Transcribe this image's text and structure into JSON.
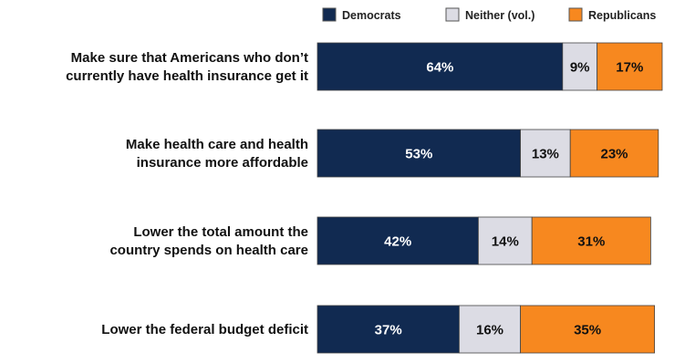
{
  "chart_data": {
    "type": "bar",
    "orientation": "horizontal",
    "stacked": true,
    "title": "",
    "xlabel": "",
    "ylabel": "",
    "xlim": [
      0,
      100
    ],
    "grid": false,
    "legend_position": "top",
    "categories": [
      [
        "Make sure that Americans who don’t",
        "currently have health insurance get it"
      ],
      [
        "Make health care and health",
        "insurance more affordable"
      ],
      [
        "Lower the total amount the",
        "country spends on health care"
      ],
      [
        "Lower the federal budget deficit"
      ]
    ],
    "series": [
      {
        "name": "Democrats",
        "color": "#112a51",
        "label_color": "#ffffff",
        "values": [
          64,
          53,
          42,
          37
        ],
        "labels": [
          "64%",
          "53%",
          "42%",
          "37%"
        ]
      },
      {
        "name": "Neither (vol.)",
        "color": "#dcdce4",
        "label_color": "#111111",
        "values": [
          9,
          13,
          14,
          16
        ],
        "labels": [
          "9%",
          "13%",
          "14%",
          "16%"
        ]
      },
      {
        "name": "Republicans",
        "color": "#f7881f",
        "label_color": "#111111",
        "values": [
          17,
          23,
          31,
          35
        ],
        "labels": [
          "17%",
          "23%",
          "31%",
          "35%"
        ]
      }
    ]
  }
}
